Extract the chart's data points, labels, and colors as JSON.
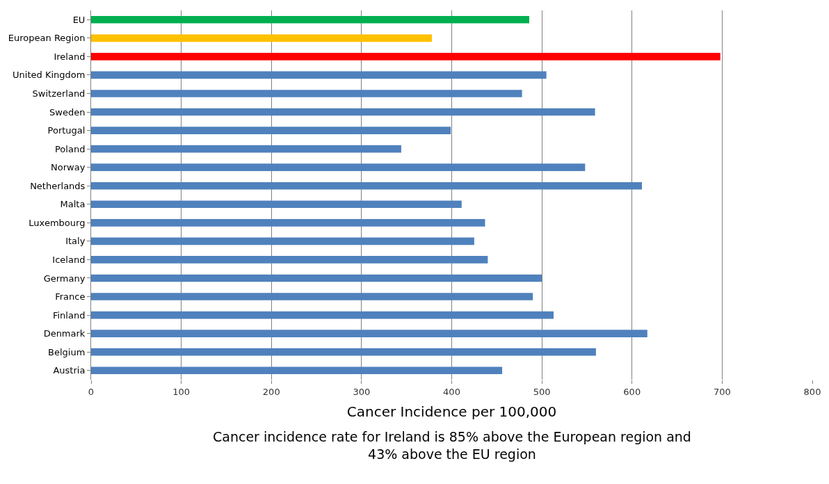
{
  "chart_data": {
    "type": "bar",
    "orientation": "horizontal",
    "categories": [
      "EU",
      "European Region",
      "Ireland",
      "United Kingdom",
      "Switzerland",
      "Sweden",
      "Portugal",
      "Poland",
      "Norway",
      "Netherlands",
      "Malta",
      "Luxembourg",
      "Italy",
      "Iceland",
      "Germany",
      "France",
      "Finland",
      "Denmark",
      "Belgium",
      "Austria"
    ],
    "values": [
      486,
      378,
      698,
      505,
      478,
      559,
      399,
      344,
      548,
      611,
      411,
      437,
      425,
      440,
      500,
      490,
      513,
      617,
      560,
      456
    ],
    "colors": [
      "#00b050",
      "#ffc000",
      "#ff0000",
      "#4f81bd",
      "#4f81bd",
      "#4f81bd",
      "#4f81bd",
      "#4f81bd",
      "#4f81bd",
      "#4f81bd",
      "#4f81bd",
      "#4f81bd",
      "#4f81bd",
      "#4f81bd",
      "#4f81bd",
      "#4f81bd",
      "#4f81bd",
      "#4f81bd",
      "#4f81bd",
      "#4f81bd"
    ],
    "xlim": [
      0,
      800
    ],
    "xticks": [
      0,
      100,
      200,
      300,
      400,
      500,
      600,
      700,
      800
    ],
    "grid": "x",
    "xlabel": "Cancer Incidence per 100,000",
    "annotations": [
      "Cancer incidence rate for Ireland is 85% above the European region and 43% above the EU region"
    ]
  }
}
